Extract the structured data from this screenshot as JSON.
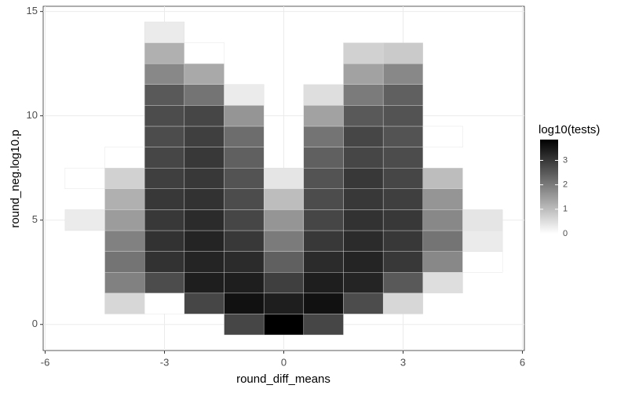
{
  "chart_data": {
    "type": "heatmap",
    "x_label": "round_diff_means",
    "y_label": "round_neg.log10.p",
    "legend_title": "log10(tests)",
    "x": [
      -5,
      -5,
      -4,
      -4,
      -4,
      -4,
      -4,
      -4,
      -4,
      -4,
      -3,
      -3,
      -3,
      -3,
      -3,
      -3,
      -3,
      -3,
      -3,
      -3,
      -3,
      -3,
      -3,
      -3,
      -2,
      -2,
      -2,
      -2,
      -2,
      -2,
      -2,
      -2,
      -2,
      -2,
      -2,
      -2,
      -2,
      -1,
      -1,
      -1,
      -1,
      -1,
      -1,
      -1,
      -1,
      -1,
      -1,
      -1,
      -1,
      0,
      0,
      0,
      0,
      0,
      0,
      0,
      0,
      1,
      1,
      1,
      1,
      1,
      1,
      1,
      1,
      1,
      1,
      1,
      1,
      2,
      2,
      2,
      2,
      2,
      2,
      2,
      2,
      2,
      2,
      2,
      2,
      2,
      3,
      3,
      3,
      3,
      3,
      3,
      3,
      3,
      3,
      3,
      3,
      3,
      3,
      4,
      4,
      4,
      4,
      4,
      4,
      4,
      5,
      5,
      5
    ],
    "y": [
      5,
      7,
      1,
      2,
      3,
      4,
      5,
      6,
      7,
      8,
      1,
      2,
      3,
      4,
      5,
      6,
      7,
      8,
      9,
      10,
      11,
      12,
      13,
      14,
      1,
      2,
      3,
      4,
      5,
      6,
      7,
      8,
      9,
      10,
      11,
      12,
      13,
      0,
      1,
      2,
      3,
      4,
      5,
      6,
      7,
      8,
      9,
      10,
      11,
      0,
      1,
      2,
      3,
      4,
      5,
      6,
      7,
      0,
      1,
      2,
      3,
      4,
      5,
      6,
      7,
      8,
      9,
      10,
      11,
      1,
      2,
      3,
      4,
      5,
      6,
      7,
      8,
      9,
      10,
      11,
      12,
      13,
      1,
      2,
      3,
      4,
      5,
      6,
      7,
      8,
      9,
      10,
      11,
      12,
      13,
      2,
      3,
      4,
      5,
      6,
      7,
      9,
      3,
      4,
      5
    ],
    "values": [
      0.3,
      0,
      0.6,
      1.9,
      2.1,
      1.9,
      1.5,
      1.2,
      0.7,
      0,
      0,
      2.7,
      3.1,
      3.1,
      3.0,
      3.0,
      2.9,
      2.8,
      2.7,
      2.7,
      2.5,
      1.8,
      1.2,
      0.3,
      2.8,
      3.4,
      3.3,
      3.3,
      3.2,
      3.1,
      3.0,
      3.0,
      2.9,
      2.8,
      2.1,
      1.3,
      0,
      2.8,
      3.6,
      3.4,
      3.2,
      3.0,
      2.8,
      2.7,
      2.6,
      2.4,
      2.2,
      1.6,
      0.3,
      3.85,
      3.4,
      2.9,
      2.4,
      2.0,
      1.6,
      1.0,
      0.4,
      2.8,
      3.6,
      3.4,
      3.2,
      3.0,
      2.8,
      2.7,
      2.6,
      2.4,
      2.1,
      1.4,
      0.5,
      2.7,
      3.3,
      3.3,
      3.2,
      3.1,
      3.0,
      3.0,
      2.8,
      2.8,
      2.5,
      2.0,
      1.4,
      0.7,
      0.6,
      2.5,
      3.0,
      3.0,
      3.0,
      2.9,
      2.8,
      2.7,
      2.6,
      2.6,
      2.4,
      1.8,
      0.8,
      0.5,
      1.8,
      2.1,
      1.8,
      1.6,
      1.0,
      0,
      0,
      0.3,
      0.4
    ],
    "low_color": "#ffffff",
    "high_color": "#000000",
    "xlim": [
      -6.05,
      6.05
    ],
    "ylim": [
      -1.25,
      15.25
    ],
    "xticks": [
      -6,
      -3,
      0,
      3,
      6
    ],
    "yticks": [
      0,
      5,
      10,
      15
    ],
    "legend_ticks": [
      0,
      1,
      2,
      3
    ],
    "grid": true
  }
}
